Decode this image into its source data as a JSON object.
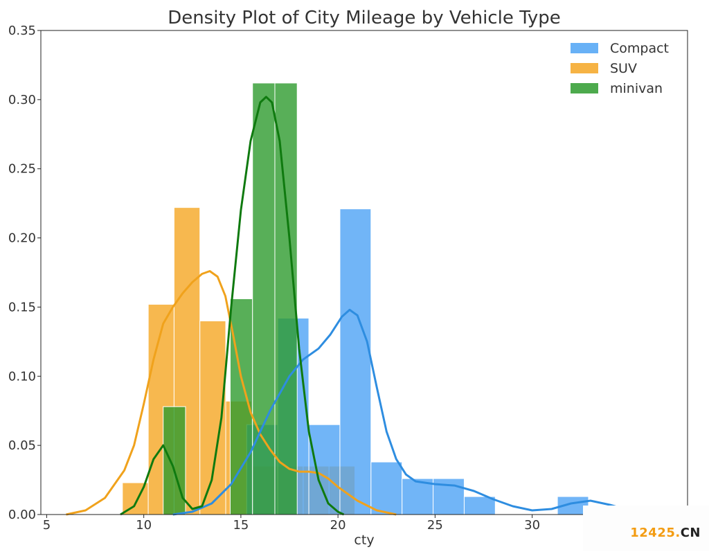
{
  "chart_data": {
    "type": "histogram-kde",
    "title": "Density Plot of City Mileage by Vehicle Type",
    "xlabel": "cty",
    "ylabel": "",
    "xlim": [
      4.7,
      38
    ],
    "ylim": [
      0,
      0.35
    ],
    "xticks": [
      5,
      10,
      15,
      20,
      25,
      30
    ],
    "yticks": [
      0.0,
      0.05,
      0.1,
      0.15,
      0.2,
      0.25,
      0.3,
      0.35
    ],
    "ytick_labels": [
      "0.00",
      "0.05",
      "0.10",
      "0.15",
      "0.20",
      "0.25",
      "0.30",
      "0.35"
    ],
    "legend_position": "top-right",
    "grid": false,
    "series": [
      {
        "name": "SUV",
        "color": "#f5a623",
        "kde_color": "#f0a21c",
        "bin_width": 1.33,
        "bins": [
          {
            "x0": 8.9,
            "value": 0.023
          },
          {
            "x0": 10.23,
            "value": 0.152
          },
          {
            "x0": 11.56,
            "value": 0.222
          },
          {
            "x0": 12.89,
            "value": 0.14
          },
          {
            "x0": 14.22,
            "value": 0.082
          },
          {
            "x0": 15.55,
            "value": 0.035
          },
          {
            "x0": 16.88,
            "value": 0.035
          },
          {
            "x0": 18.21,
            "value": 0.035
          },
          {
            "x0": 19.54,
            "value": 0.035
          }
        ],
        "kde": [
          [
            6.0,
            0.0
          ],
          [
            7.0,
            0.003
          ],
          [
            8.0,
            0.012
          ],
          [
            9.0,
            0.032
          ],
          [
            9.5,
            0.05
          ],
          [
            10.0,
            0.08
          ],
          [
            10.5,
            0.112
          ],
          [
            11.0,
            0.138
          ],
          [
            11.5,
            0.15
          ],
          [
            12.0,
            0.16
          ],
          [
            12.5,
            0.168
          ],
          [
            13.0,
            0.174
          ],
          [
            13.4,
            0.176
          ],
          [
            13.8,
            0.172
          ],
          [
            14.2,
            0.158
          ],
          [
            14.6,
            0.13
          ],
          [
            15.0,
            0.1
          ],
          [
            15.5,
            0.074
          ],
          [
            16.0,
            0.058
          ],
          [
            16.5,
            0.047
          ],
          [
            17.0,
            0.038
          ],
          [
            17.5,
            0.033
          ],
          [
            18.0,
            0.031
          ],
          [
            18.5,
            0.031
          ],
          [
            19.0,
            0.03
          ],
          [
            19.5,
            0.026
          ],
          [
            20.0,
            0.02
          ],
          [
            21.0,
            0.01
          ],
          [
            22.0,
            0.003
          ],
          [
            23.0,
            0.0
          ]
        ]
      },
      {
        "name": "Compact",
        "color": "#4da3f5",
        "kde_color": "#2e8de0",
        "bin_width": 1.6,
        "bins": [
          {
            "x0": 15.3,
            "value": 0.065
          },
          {
            "x0": 16.9,
            "value": 0.142
          },
          {
            "x0": 18.5,
            "value": 0.065
          },
          {
            "x0": 20.1,
            "value": 0.221
          },
          {
            "x0": 21.7,
            "value": 0.038
          },
          {
            "x0": 23.3,
            "value": 0.026
          },
          {
            "x0": 24.9,
            "value": 0.026
          },
          {
            "x0": 26.5,
            "value": 0.013
          },
          {
            "x0": 31.3,
            "value": 0.013
          }
        ],
        "kde": [
          [
            11.5,
            0.0
          ],
          [
            12.5,
            0.002
          ],
          [
            13.5,
            0.008
          ],
          [
            14.5,
            0.022
          ],
          [
            15.5,
            0.045
          ],
          [
            16.5,
            0.075
          ],
          [
            17.5,
            0.1
          ],
          [
            18.2,
            0.112
          ],
          [
            19.0,
            0.12
          ],
          [
            19.6,
            0.13
          ],
          [
            20.2,
            0.143
          ],
          [
            20.6,
            0.148
          ],
          [
            21.0,
            0.144
          ],
          [
            21.5,
            0.125
          ],
          [
            22.0,
            0.092
          ],
          [
            22.5,
            0.06
          ],
          [
            23.0,
            0.04
          ],
          [
            23.5,
            0.029
          ],
          [
            24.0,
            0.024
          ],
          [
            25.0,
            0.022
          ],
          [
            26.0,
            0.021
          ],
          [
            27.0,
            0.017
          ],
          [
            28.0,
            0.011
          ],
          [
            29.0,
            0.006
          ],
          [
            30.0,
            0.003
          ],
          [
            31.0,
            0.004
          ],
          [
            32.0,
            0.008
          ],
          [
            33.0,
            0.01
          ],
          [
            34.0,
            0.007
          ],
          [
            35.0,
            0.003
          ],
          [
            36.0,
            0.0
          ]
        ]
      },
      {
        "name": "minivan",
        "color": "#2e9b2e",
        "kde_color": "#0f7a0f",
        "bin_width": 1.15,
        "bins": [
          {
            "x0": 11.0,
            "value": 0.078
          },
          {
            "x0": 14.45,
            "value": 0.156
          },
          {
            "x0": 15.6,
            "value": 0.312
          },
          {
            "x0": 16.75,
            "value": 0.312
          }
        ],
        "kde": [
          [
            8.8,
            0.0
          ],
          [
            9.5,
            0.006
          ],
          [
            10.0,
            0.02
          ],
          [
            10.5,
            0.04
          ],
          [
            11.0,
            0.05
          ],
          [
            11.5,
            0.035
          ],
          [
            12.0,
            0.012
          ],
          [
            12.5,
            0.004
          ],
          [
            13.0,
            0.006
          ],
          [
            13.5,
            0.025
          ],
          [
            14.0,
            0.07
          ],
          [
            14.5,
            0.15
          ],
          [
            15.0,
            0.22
          ],
          [
            15.5,
            0.27
          ],
          [
            16.0,
            0.298
          ],
          [
            16.3,
            0.302
          ],
          [
            16.6,
            0.298
          ],
          [
            17.0,
            0.27
          ],
          [
            17.5,
            0.2
          ],
          [
            18.0,
            0.12
          ],
          [
            18.5,
            0.06
          ],
          [
            19.0,
            0.025
          ],
          [
            19.5,
            0.008
          ],
          [
            20.0,
            0.002
          ],
          [
            20.3,
            0.0
          ]
        ]
      }
    ],
    "legend_order": [
      "Compact",
      "SUV",
      "minivan"
    ]
  },
  "watermark": {
    "number": "12425",
    "dot": ".",
    "suffix": "CN"
  }
}
